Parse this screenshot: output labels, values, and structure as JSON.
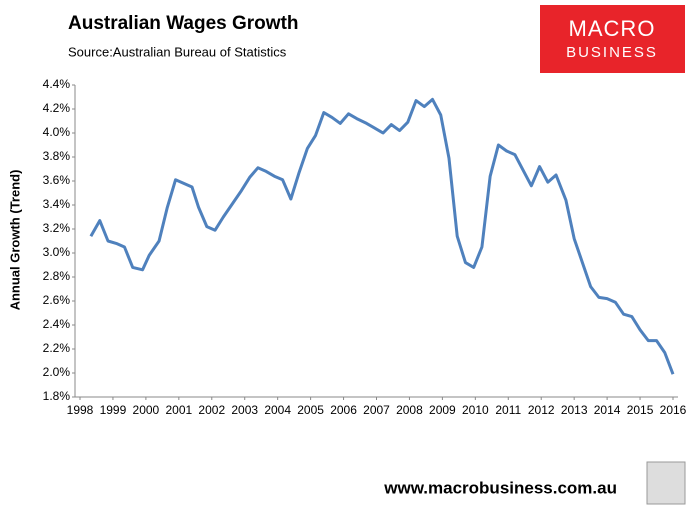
{
  "chart_data": {
    "type": "line",
    "title": "Australian Wages Growth",
    "subtitle": "Source:Australian Bureau of Statistics",
    "ylabel": "Annual Growth (Trend)",
    "logo": [
      "MACRO",
      "BUSINESS"
    ],
    "footer": "www.macrobusiness.com.au",
    "xlim": [
      1998,
      2016
    ],
    "xticks": [
      1998,
      1999,
      2000,
      2001,
      2002,
      2003,
      2004,
      2005,
      2006,
      2007,
      2008,
      2009,
      2010,
      2011,
      2012,
      2013,
      2014,
      2015,
      2016
    ],
    "ylim": [
      1.8,
      4.4
    ],
    "yticks": [
      {
        "value": 1.8,
        "label": "1.8%"
      },
      {
        "value": 2.0,
        "label": "2.0%"
      },
      {
        "value": 2.2,
        "label": "2.2%"
      },
      {
        "value": 2.4,
        "label": "2.4%"
      },
      {
        "value": 2.6,
        "label": "2.6%"
      },
      {
        "value": 2.8,
        "label": "2.8%"
      },
      {
        "value": 3.0,
        "label": "3.0%"
      },
      {
        "value": 3.2,
        "label": "3.2%"
      },
      {
        "value": 3.4,
        "label": "3.4%"
      },
      {
        "value": 3.6,
        "label": "3.6%"
      },
      {
        "value": 3.8,
        "label": "3.8%"
      },
      {
        "value": 4.0,
        "label": "4.0%"
      },
      {
        "value": 4.2,
        "label": "4.2%"
      },
      {
        "value": 4.4,
        "label": "4.4%"
      }
    ],
    "grid": false,
    "x": [
      1998.33,
      1998.6,
      1998.85,
      1999.1,
      1999.35,
      1999.6,
      1999.9,
      2000.1,
      2000.4,
      2000.65,
      2000.9,
      2001.15,
      2001.4,
      2001.6,
      2001.85,
      2002.1,
      2002.35,
      2002.65,
      2002.9,
      2003.15,
      2003.4,
      2003.65,
      2003.9,
      2004.15,
      2004.4,
      2004.65,
      2004.9,
      2005.15,
      2005.4,
      2005.65,
      2005.9,
      2006.15,
      2006.4,
      2006.7,
      2006.95,
      2007.2,
      2007.45,
      2007.7,
      2007.95,
      2008.2,
      2008.45,
      2008.7,
      2008.95,
      2009.2,
      2009.45,
      2009.7,
      2009.95,
      2010.2,
      2010.45,
      2010.7,
      2010.95,
      2011.2,
      2011.45,
      2011.7,
      2011.95,
      2012.2,
      2012.45,
      2012.75,
      2013.0,
      2013.25,
      2013.5,
      2013.75,
      2014.0,
      2014.25,
      2014.5,
      2014.75,
      2015.0,
      2015.25,
      2015.5,
      2015.75,
      2016.0
    ],
    "series": [
      {
        "color": "#4f81bd",
        "values": [
          3.14,
          3.27,
          3.1,
          3.08,
          3.05,
          2.88,
          2.86,
          2.98,
          3.1,
          3.38,
          3.61,
          3.58,
          3.55,
          3.38,
          3.22,
          3.19,
          3.3,
          3.42,
          3.52,
          3.63,
          3.71,
          3.68,
          3.64,
          3.61,
          3.45,
          3.67,
          3.87,
          3.98,
          4.17,
          4.13,
          4.08,
          4.16,
          4.12,
          4.08,
          4.04,
          4.0,
          4.07,
          4.02,
          4.09,
          4.27,
          4.22,
          4.28,
          4.15,
          3.79,
          3.14,
          2.92,
          2.88,
          3.05,
          3.64,
          3.9,
          3.85,
          3.82,
          3.69,
          3.56,
          3.72,
          3.59,
          3.65,
          3.44,
          3.12,
          2.92,
          2.72,
          2.63,
          2.62,
          2.59,
          2.49,
          2.47,
          2.36,
          2.27,
          2.27,
          2.17,
          1.99
        ]
      }
    ]
  }
}
